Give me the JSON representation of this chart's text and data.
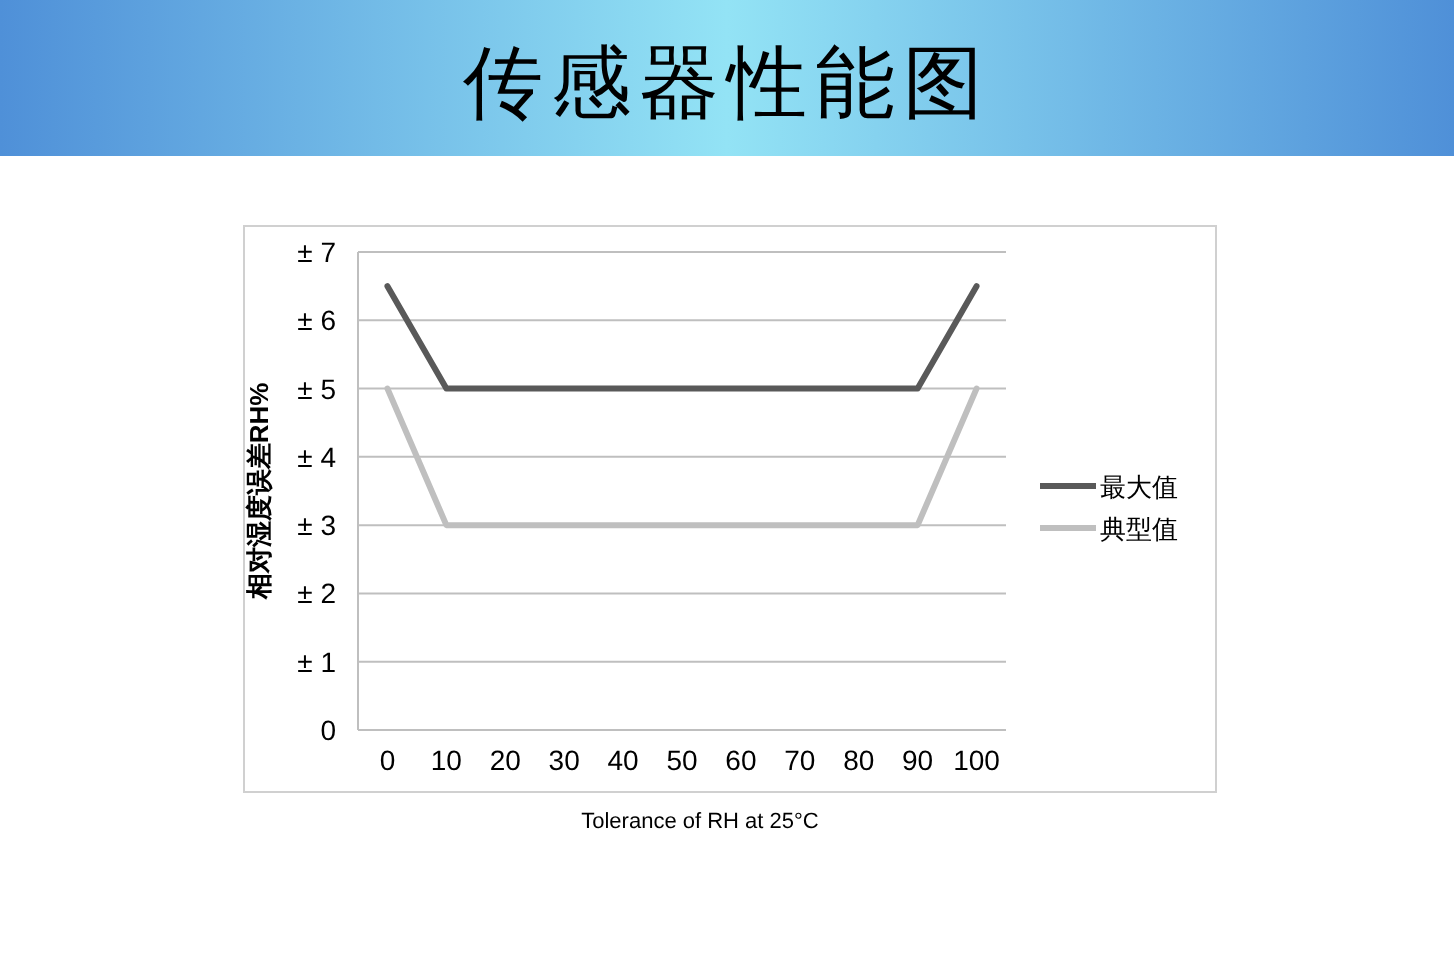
{
  "chart_data": {
    "type": "line",
    "title": "传感器性能图",
    "xlabel": "Tolerance of RH at 25°C",
    "ylabel": "相对湿度误差RH%",
    "categories": [
      "0",
      "10",
      "20",
      "30",
      "40",
      "50",
      "60",
      "70",
      "80",
      "90",
      "100"
    ],
    "series": [
      {
        "name": "最大值",
        "color": "#595959",
        "values": [
          6.5,
          5,
          5,
          5,
          5,
          5,
          5,
          5,
          5,
          5,
          6.5
        ]
      },
      {
        "name": "典型值",
        "color": "#bfbfbf",
        "values": [
          5,
          3,
          3,
          3,
          3,
          3,
          3,
          3,
          3,
          3,
          5
        ]
      }
    ],
    "ylim": [
      0,
      7
    ],
    "yticks": [
      0,
      {
        "value": 1,
        "label": "± 1"
      },
      {
        "value": 2,
        "label": "± 2"
      },
      {
        "value": 3,
        "label": "± 3"
      },
      {
        "value": 4,
        "label": "± 4"
      },
      {
        "value": 5,
        "label": "± 5"
      },
      {
        "value": 6,
        "label": "± 6"
      },
      {
        "value": 7,
        "label": "± 7"
      }
    ],
    "grid": "y",
    "legend": "right"
  }
}
